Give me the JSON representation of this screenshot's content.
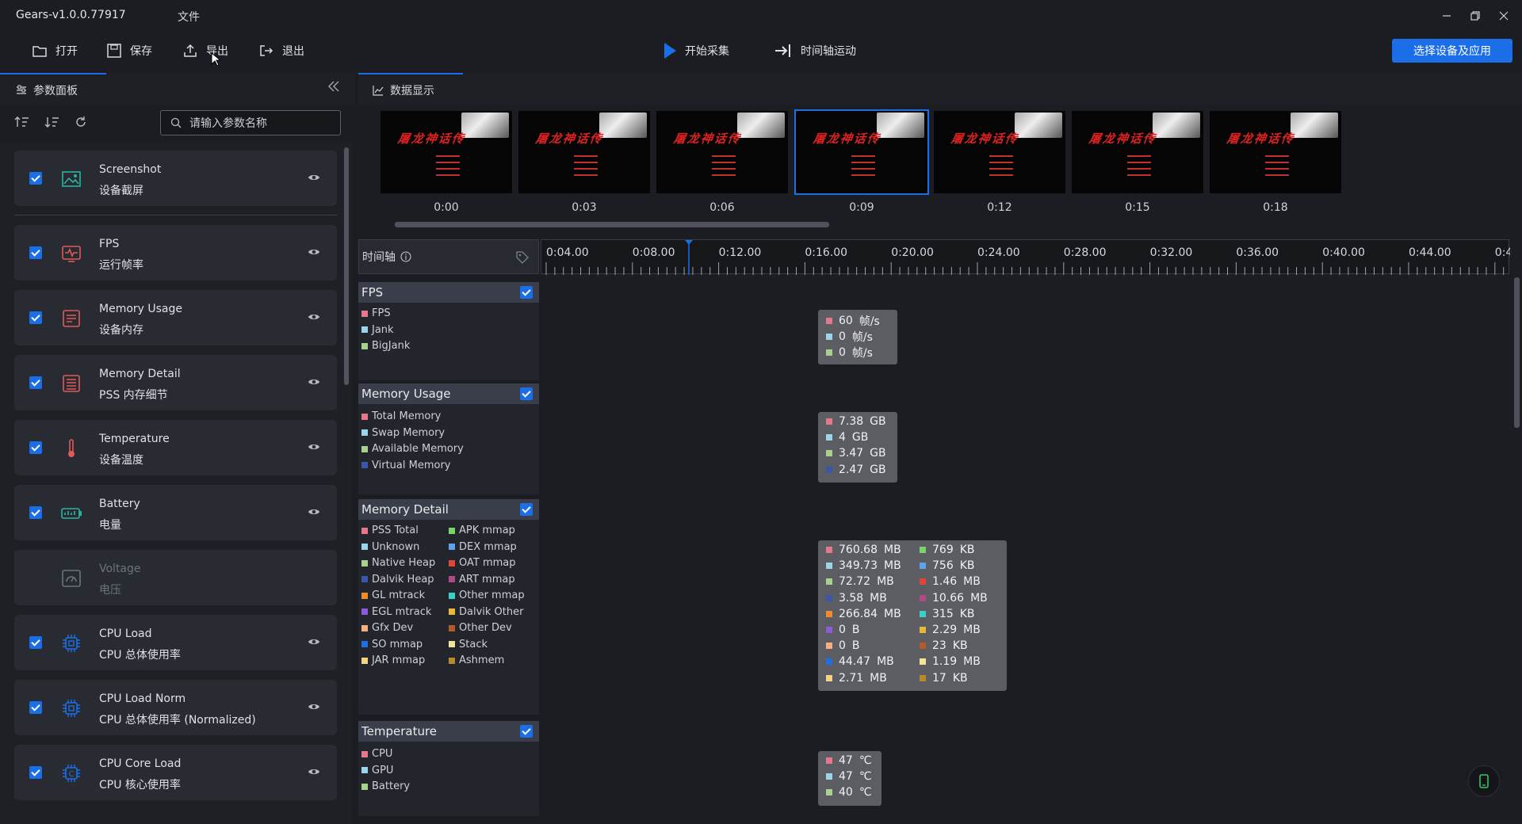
{
  "app_title": "Gears-v1.0.0.77917",
  "menu_file": "文件",
  "toolbar": {
    "open": "打开",
    "save": "保存",
    "export": "导出",
    "quit": "退出",
    "start": "开始采集",
    "timeline_motion": "时间轴运动",
    "select_device": "选择设备及应用"
  },
  "left_panel": {
    "tab_label": "参数面板",
    "search_placeholder": "请输入参数名称",
    "cards": [
      {
        "title": "Screenshot",
        "subtitle": "设备截屏",
        "checked": true,
        "icon": "image-icon"
      },
      {
        "title": "FPS",
        "subtitle": "运行帧率",
        "checked": true,
        "icon": "pulse-monitor-icon"
      },
      {
        "title": "Memory Usage",
        "subtitle": "设备内存",
        "checked": true,
        "icon": "memory-chip-icon"
      },
      {
        "title": "Memory Detail",
        "subtitle": "PSS 内存细节",
        "checked": true,
        "icon": "memory-list-icon"
      },
      {
        "title": "Temperature",
        "subtitle": "设备温度",
        "checked": true,
        "icon": "thermometer-icon"
      },
      {
        "title": "Battery",
        "subtitle": "电量",
        "checked": true,
        "icon": "battery-icon"
      },
      {
        "title": "Voltage",
        "subtitle": "电压",
        "checked": false,
        "icon": "gauge-icon"
      },
      {
        "title": "CPU Load",
        "subtitle": "CPU 总体使用率",
        "checked": true,
        "icon": "cpu-icon"
      },
      {
        "title": "CPU Load Norm",
        "subtitle": "CPU 总体使用率 (Normalized)",
        "checked": true,
        "icon": "cpu-icon"
      },
      {
        "title": "CPU Core Load",
        "subtitle": "CPU 核心使用率",
        "checked": true,
        "icon": "cpu-core-icon"
      }
    ]
  },
  "right_panel": {
    "tab_label": "数据显示",
    "thumbnails": [
      "0:00",
      "0:03",
      "0:06",
      "0:09",
      "0:12",
      "0:15",
      "0:18"
    ],
    "selected_thumbnail": 3,
    "thumb_title": "屠龙神话传",
    "timeline": {
      "label": "时间轴",
      "ticks": [
        "0:04.00",
        "0:08.00",
        "0:12.00",
        "0:16.00",
        "0:20.00",
        "0:24.00",
        "0:28.00",
        "0:32.00",
        "0:36.00",
        "0:40.00",
        "0:44.00",
        "0:4"
      ]
    }
  },
  "colors": {
    "accent": "#1a6fe8",
    "pink": "#e5788c",
    "lightblue": "#9fd3ec",
    "green": "#a9d18e",
    "navy": "#3b55a8",
    "orange": "#ef8b2c",
    "red": "#e0453a"
  },
  "sections": {
    "fps": {
      "title": "FPS",
      "unit": "帧/s",
      "yticks": [
        "60",
        "45",
        "30",
        "15",
        "0"
      ],
      "legend": [
        "FPS",
        "Jank",
        "BigJank"
      ],
      "tooltip": [
        [
          "60",
          "帧/s"
        ],
        [
          "0",
          "帧/s"
        ],
        [
          "0",
          "帧/s"
        ]
      ]
    },
    "mem_usage": {
      "title": "Memory Usage",
      "unit": "GB",
      "yticks": [
        "7.4",
        "5.5",
        "3.7",
        "1.8",
        "0"
      ],
      "legend": [
        "Total Memory",
        "Swap Memory",
        "Available Memory",
        "Virtual Memory"
      ],
      "tooltip": [
        [
          "7.38",
          "GB"
        ],
        [
          "4",
          "GB"
        ],
        [
          "3.47",
          "GB"
        ],
        [
          "2.47",
          "GB"
        ]
      ]
    },
    "mem_detail": {
      "title": "Memory Detail",
      "unit": "GB",
      "yticks": [
        "1",
        "0.8",
        "0.5",
        "0.3",
        "0"
      ],
      "legend_left": [
        "PSS Total",
        "Unknown",
        "Native Heap",
        "Dalvik Heap",
        "GL mtrack",
        "EGL mtrack",
        "Gfx Dev",
        "SO mmap",
        "JAR mmap"
      ],
      "legend_right": [
        "APK mmap",
        "DEX mmap",
        "OAT mmap",
        "ART mmap",
        "Other mmap",
        "Dalvik Other",
        "Other Dev",
        "Stack",
        "Ashmem"
      ],
      "tooltip_left": [
        [
          "760.68",
          "MB"
        ],
        [
          "349.73",
          "MB"
        ],
        [
          "72.72",
          "MB"
        ],
        [
          "3.58",
          "MB"
        ],
        [
          "266.84",
          "MB"
        ],
        [
          "0",
          "B"
        ],
        [
          "0",
          "B"
        ],
        [
          "44.47",
          "MB"
        ],
        [
          "2.71",
          "MB"
        ]
      ],
      "tooltip_right": [
        [
          "769",
          "KB"
        ],
        [
          "756",
          "KB"
        ],
        [
          "1.46",
          "MB"
        ],
        [
          "10.66",
          "MB"
        ],
        [
          "315",
          "KB"
        ],
        [
          "2.29",
          "MB"
        ],
        [
          "23",
          "KB"
        ],
        [
          "1.19",
          "MB"
        ],
        [
          "17",
          "KB"
        ]
      ]
    },
    "temperature": {
      "title": "Temperature",
      "unit": "℃",
      "yticks": [
        "52",
        "39",
        "26",
        "13",
        "0"
      ],
      "legend": [
        "CPU",
        "GPU",
        "Battery"
      ],
      "tooltip": [
        [
          "47",
          "℃"
        ],
        [
          "47",
          "℃"
        ],
        [
          "40",
          "℃"
        ]
      ]
    }
  }
}
